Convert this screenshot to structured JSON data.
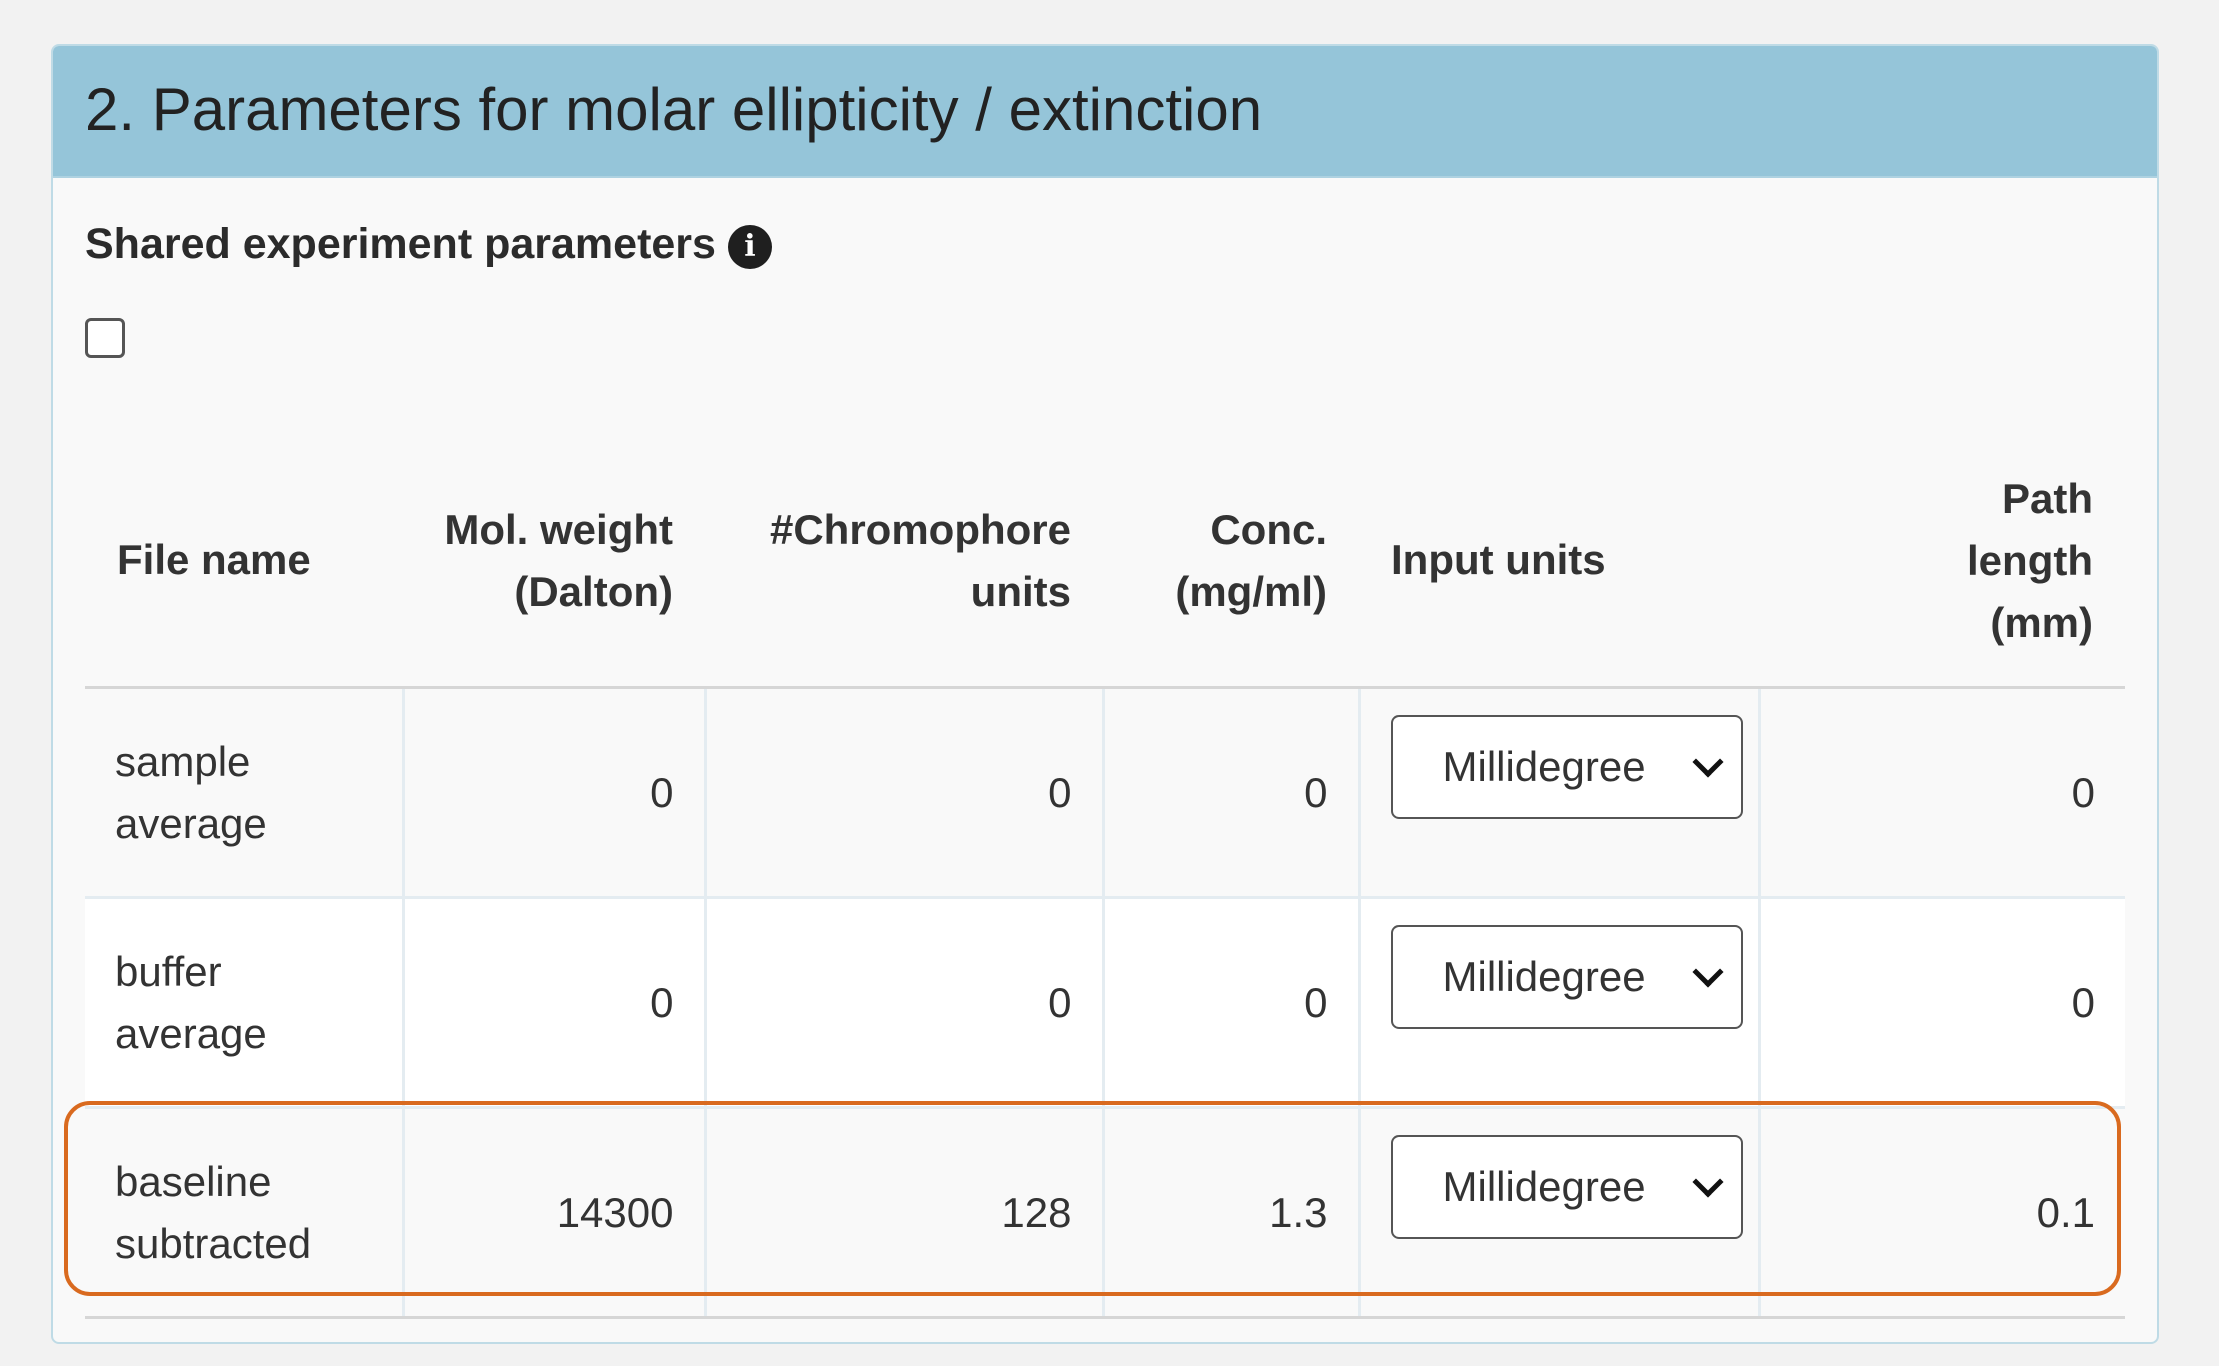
{
  "panel": {
    "title": "2. Parameters for molar ellipticity / extinction",
    "shared_label": "Shared experiment parameters",
    "info_icon_glyph": "i",
    "shared_checked": false
  },
  "table": {
    "headers": [
      "File name",
      "Mol. weight (Dalton)",
      "#Chromophore units",
      "Conc. (mg/ml)",
      "Input units",
      "Path length (mm)"
    ],
    "header_lines": {
      "file_name": [
        "File name"
      ],
      "mol_weight": [
        "Mol. weight",
        "(Dalton)"
      ],
      "chromophore": [
        "#Chromophore",
        "units"
      ],
      "conc": [
        "Conc.",
        "(mg/ml)"
      ],
      "input_units": [
        "Input units"
      ],
      "path_length": [
        "Path",
        "length",
        "(mm)"
      ]
    },
    "rows": [
      {
        "name_lines": [
          "sample",
          "average"
        ],
        "mol_weight": "0",
        "chromophore": "0",
        "conc": "0",
        "input_units": "Millidegree",
        "path_length": "0"
      },
      {
        "name_lines": [
          "buffer",
          "average"
        ],
        "mol_weight": "0",
        "chromophore": "0",
        "conc": "0",
        "input_units": "Millidegree",
        "path_length": "0"
      },
      {
        "name_lines": [
          "baseline",
          "subtracted"
        ],
        "mol_weight": "14300",
        "chromophore": "128",
        "conc": "1.3",
        "input_units": "Millidegree",
        "path_length": "0.1"
      }
    ]
  },
  "colors": {
    "header_bg": "#95c5d9",
    "highlight_border": "#d96a1f",
    "page_bg": "#f2f2f2"
  }
}
